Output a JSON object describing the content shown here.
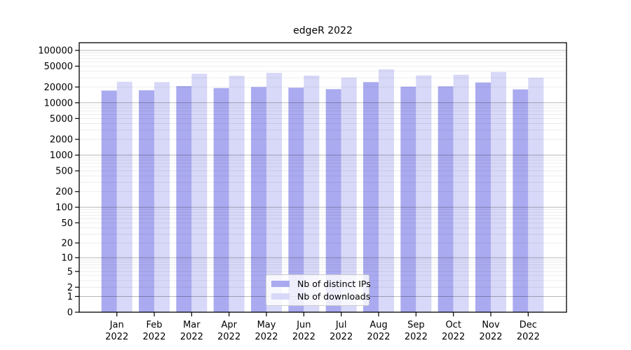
{
  "chart_data": {
    "type": "bar",
    "title": "edgeR 2022",
    "x_axis": {
      "months": [
        "Jan",
        "Feb",
        "Mar",
        "Apr",
        "May",
        "Jun",
        "Jul",
        "Aug",
        "Sep",
        "Oct",
        "Nov",
        "Dec"
      ],
      "year": "2022"
    },
    "categories": [
      "Jan 2022",
      "Feb 2022",
      "Mar 2022",
      "Apr 2022",
      "May 2022",
      "Jun 2022",
      "Jul 2022",
      "Aug 2022",
      "Sep 2022",
      "Oct 2022",
      "Nov 2022",
      "Dec 2022"
    ],
    "series": [
      {
        "name": "Nb of distinct IPs",
        "color": "#aaaaf0",
        "values": [
          17100,
          17300,
          20800,
          19100,
          20000,
          19400,
          18200,
          24800,
          20300,
          20600,
          24400,
          18000
        ]
      },
      {
        "name": "Nb of downloads",
        "color": "#d8d8f8",
        "values": [
          25200,
          24800,
          35800,
          32700,
          37300,
          33000,
          30300,
          43500,
          33300,
          34300,
          38800,
          30100
        ]
      }
    ],
    "y_axis": {
      "scale": "log1p",
      "ticks": [
        100000,
        50000,
        20000,
        10000,
        5000,
        2000,
        1000,
        500,
        200,
        100,
        50,
        20,
        10,
        5,
        2,
        1,
        0
      ],
      "range_top": 100000
    },
    "grid": {
      "major_on": true,
      "minor_on": true,
      "legend_position": "bottom-center-inside"
    },
    "colors": {
      "bar_distinct_ips": "#aaaaf0",
      "bar_downloads": "#d8d8f8",
      "grid_major": "rgba(0,0,0,0.28)",
      "grid_minor": "rgba(0,0,0,0.09)",
      "frame": "#000000"
    }
  }
}
